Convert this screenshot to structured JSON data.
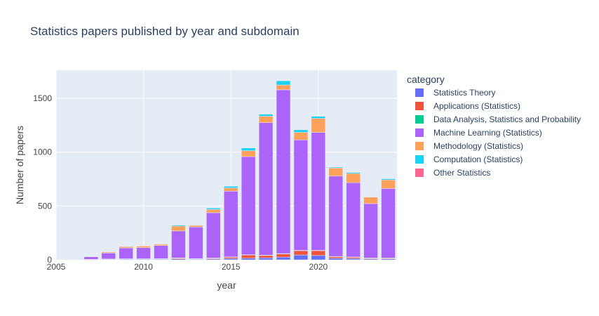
{
  "chart_data": {
    "type": "bar",
    "stacked": true,
    "title": "Statistics papers published by year and subdomain",
    "xlabel": "year",
    "ylabel": "Number of papers",
    "xlim": [
      2005,
      2024.5
    ],
    "ylim": [
      0,
      1760
    ],
    "x_ticks": [
      2005,
      2010,
      2015,
      2020
    ],
    "y_ticks": [
      0,
      500,
      1000,
      1500
    ],
    "grid": true,
    "legend_title": "category",
    "legend_position": "right",
    "x": [
      2007,
      2008,
      2009,
      2010,
      2011,
      2012,
      2013,
      2014,
      2015,
      2016,
      2017,
      2018,
      2019,
      2020,
      2021,
      2022,
      2023,
      2024
    ],
    "series": [
      {
        "name": "Statistics Theory",
        "color": "#636efa",
        "values": [
          2,
          4,
          5,
          5,
          6,
          8,
          5,
          8,
          12,
          15,
          18,
          25,
          45,
          40,
          15,
          12,
          8,
          8
        ]
      },
      {
        "name": "Applications (Statistics)",
        "color": "#EF553B",
        "values": [
          2,
          3,
          4,
          4,
          4,
          8,
          5,
          7,
          12,
          30,
          22,
          30,
          40,
          45,
          15,
          12,
          8,
          8
        ]
      },
      {
        "name": "Data Analysis, Statistics and Probability",
        "color": "#00cc96",
        "values": [
          1,
          1,
          1,
          1,
          1,
          2,
          1,
          2,
          3,
          3,
          3,
          3,
          3,
          3,
          2,
          2,
          1,
          1
        ]
      },
      {
        "name": "Machine Learning (Statistics)",
        "color": "#ab63fa",
        "values": [
          23,
          55,
          100,
          103,
          121,
          250,
          294,
          420,
          610,
          910,
          1230,
          1520,
          1025,
          1095,
          745,
          690,
          505,
          645
        ]
      },
      {
        "name": "Methodology (Statistics)",
        "color": "#FFA15A",
        "values": [
          4,
          10,
          12,
          15,
          12,
          45,
          15,
          30,
          30,
          55,
          60,
          45,
          70,
          130,
          75,
          85,
          60,
          80
        ]
      },
      {
        "name": "Computation (Statistics)",
        "color": "#19d3f3",
        "values": [
          1,
          2,
          3,
          3,
          4,
          10,
          5,
          15,
          18,
          27,
          20,
          40,
          25,
          20,
          10,
          12,
          5,
          12
        ]
      },
      {
        "name": "Other Statistics",
        "color": "#FF6692",
        "values": [
          0,
          1,
          1,
          1,
          1,
          2,
          1,
          1,
          1,
          2,
          2,
          2,
          2,
          2,
          1,
          1,
          1,
          1
        ]
      }
    ]
  }
}
